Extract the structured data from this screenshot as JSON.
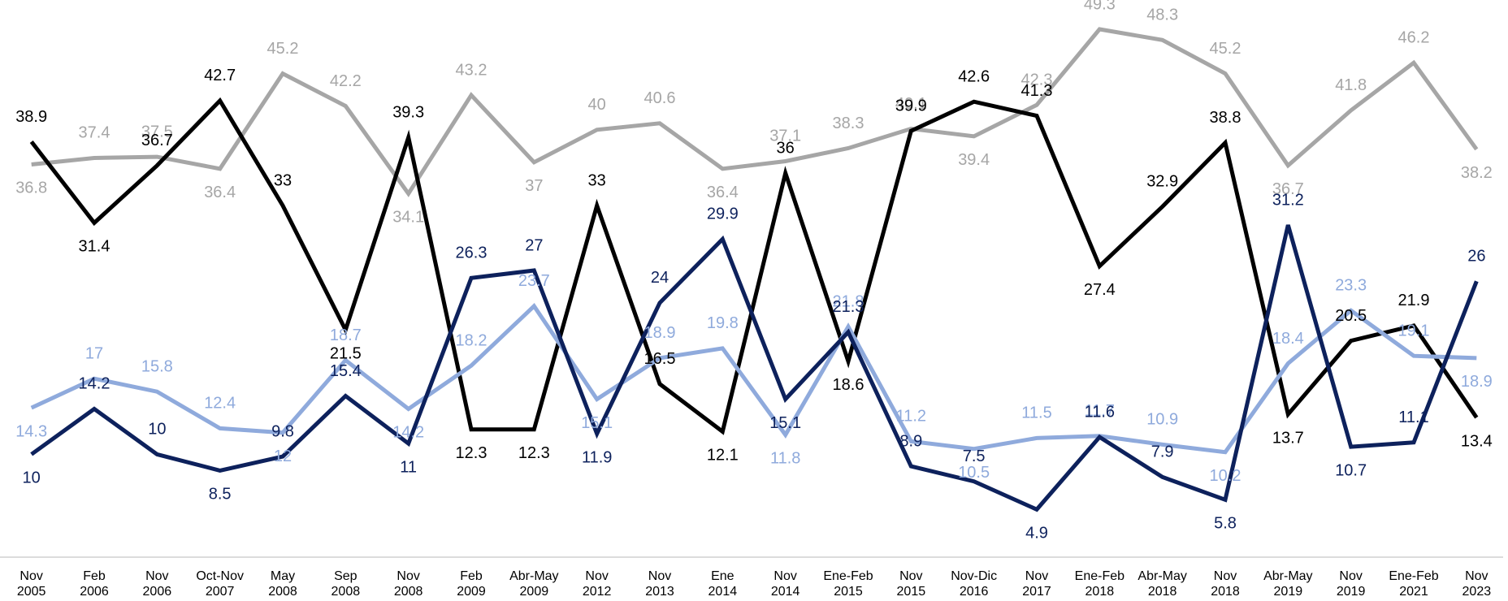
{
  "chart_data": {
    "type": "line",
    "categories": [
      "Nov\n2005",
      "Feb\n2006",
      "Nov\n2006",
      "Oct-Nov\n2007",
      "May\n2008",
      "Sep\n2008",
      "Nov\n2008",
      "Feb\n2009",
      "Abr-May\n2009",
      "Nov\n2012",
      "Nov\n2013",
      "Ene\n2014",
      "Nov\n2014",
      "Ene-Feb\n2015",
      "Nov\n2015",
      "Nov-Dic\n2016",
      "Nov\n2017",
      "Ene-Feb\n2018",
      "Abr-May\n2018",
      "Nov\n2018",
      "Abr-May\n2019",
      "Nov\n2019",
      "Ene-Feb\n2021",
      "Nov\n2023"
    ],
    "series": [
      {
        "color": "#a6a6a6",
        "values": [
          36.8,
          37.4,
          37.5,
          36.4,
          45.2,
          42.2,
          34.1,
          43.2,
          37,
          40,
          40.6,
          36.4,
          37.1,
          38.3,
          40.1,
          39.4,
          42.3,
          49.3,
          48.3,
          45.2,
          36.7,
          41.8,
          46.2,
          38.2
        ]
      },
      {
        "color": "#000000",
        "values": [
          38.9,
          31.4,
          36.7,
          42.7,
          33,
          21.5,
          39.3,
          12.3,
          12.3,
          33,
          16.5,
          12.1,
          36,
          18.6,
          39.9,
          42.6,
          41.3,
          27.4,
          32.9,
          38.8,
          13.7,
          20.5,
          21.9,
          13.4
        ]
      },
      {
        "color": "#8faadc",
        "values": [
          14.3,
          17,
          15.8,
          12.4,
          12,
          18.7,
          14.2,
          18.2,
          23.7,
          15.1,
          18.9,
          19.8,
          11.8,
          21.8,
          11.2,
          10.5,
          11.5,
          11.7,
          10.9,
          10.2,
          18.4,
          23.3,
          19.1,
          18.9
        ]
      },
      {
        "color": "#0d215c",
        "values": [
          10,
          14.2,
          10,
          8.5,
          9.8,
          15.4,
          11,
          26.3,
          27,
          11.9,
          24,
          29.9,
          15.1,
          21.3,
          8.9,
          7.5,
          4.9,
          11.6,
          7.9,
          5.8,
          31.2,
          10.7,
          11.1,
          26
        ]
      }
    ],
    "ylim": [
      0,
      52
    ]
  }
}
